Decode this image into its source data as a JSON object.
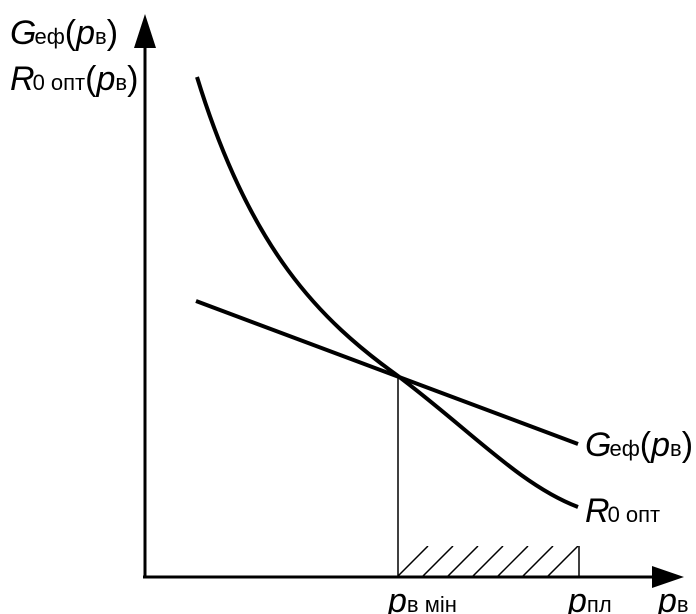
{
  "y_axis_label": {
    "line1": {
      "main": "G",
      "sub": "еф",
      "paren_open": "(",
      "var": "p",
      "var_sub": "в",
      "paren_close": ")"
    },
    "line2": {
      "main": "R",
      "sub": "0 опт",
      "paren_open": "(",
      "var": "p",
      "var_sub": "в",
      "paren_close": ")"
    }
  },
  "x_axis_label": {
    "var": "p",
    "var_sub": "в"
  },
  "curve_labels": {
    "g_ef": {
      "main": "G",
      "sub": "еф",
      "paren_open": "(",
      "var": "p",
      "var_sub": "в",
      "paren_close": ")"
    },
    "r_opt": {
      "main": "R",
      "sub": "0 опт"
    }
  },
  "x_ticks": {
    "p_min": {
      "var": "p",
      "sub": "в мін"
    },
    "p_pl": {
      "var": "p",
      "sub": "пл"
    }
  },
  "colors": {
    "ink": "#000000",
    "background": "#ffffff"
  }
}
